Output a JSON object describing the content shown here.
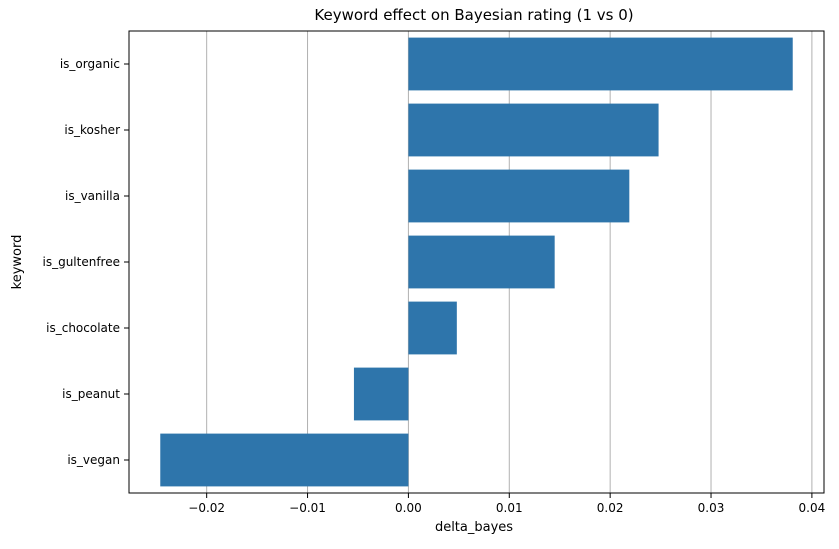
{
  "chart_data": {
    "type": "bar",
    "orientation": "horizontal",
    "title": "Keyword effect on Bayesian rating (1 vs 0)",
    "xlabel": "delta_bayes",
    "ylabel": "keyword",
    "categories": [
      "is_organic",
      "is_kosher",
      "is_vanilla",
      "is_gultenfree",
      "is_chocolate",
      "is_peanut",
      "is_vegan"
    ],
    "values": [
      0.0381,
      0.0248,
      0.0219,
      0.0145,
      0.0048,
      -0.0054,
      -0.0246
    ],
    "xlim": [
      -0.0277,
      0.0412
    ],
    "xticks": [
      -0.02,
      -0.01,
      0.0,
      0.01,
      0.02,
      0.03,
      0.04
    ],
    "xtick_labels": [
      "−0.02",
      "−0.01",
      "0.00",
      "0.01",
      "0.02",
      "0.03",
      "0.04"
    ],
    "grid": "x-axis vertical lines",
    "bar_color": "#2e75ab",
    "grid_color": "#b0b0b0"
  }
}
